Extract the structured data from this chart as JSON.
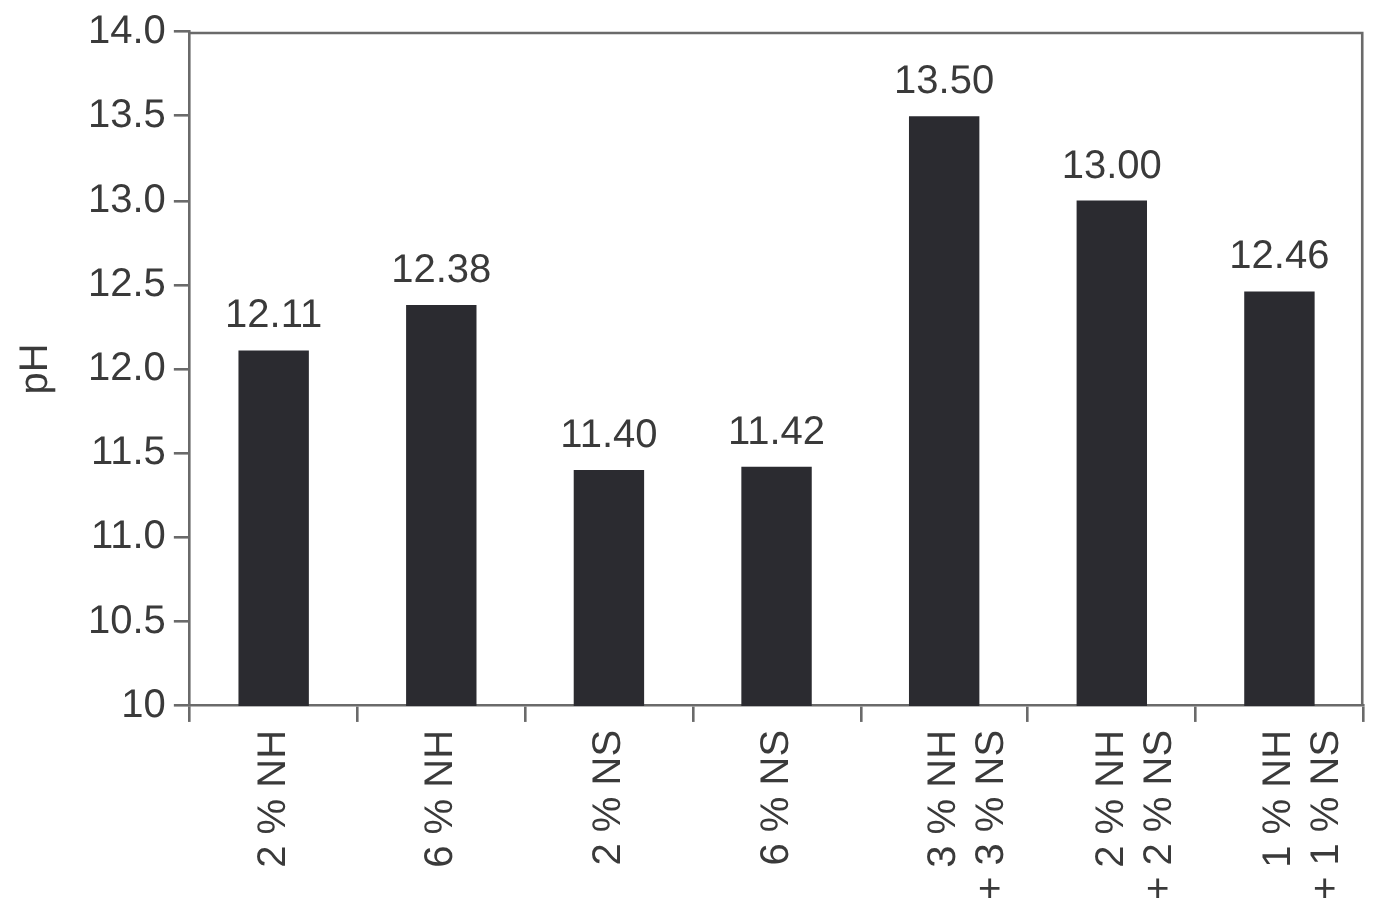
{
  "chart_data": {
    "type": "bar",
    "ylabel": "pH",
    "categories": [
      "2 % NH",
      "6 % NH",
      "2 % NS",
      "6 % NS",
      "3 % NH\n+ 3 % NS",
      "2 % NH\n+ 2 % NS",
      "1 % NH\n+ 1 % NS"
    ],
    "values": [
      12.11,
      12.38,
      11.4,
      11.42,
      13.5,
      13.0,
      12.46
    ],
    "value_labels": [
      "12.11",
      "12.38",
      "11.40",
      "11.42",
      "13.50",
      "13.00",
      "12.46"
    ],
    "color": "#2b2b30",
    "ylim": [
      10,
      14
    ],
    "yticks": [
      10,
      10.5,
      {
        "value": 11,
        "label": "11.0"
      },
      11.5,
      {
        "value": 12,
        "label": "12.0"
      },
      12.5,
      {
        "value": 13,
        "label": "13.0"
      },
      13.5,
      {
        "value": 14,
        "label": "14.0"
      }
    ],
    "grid": false
  }
}
